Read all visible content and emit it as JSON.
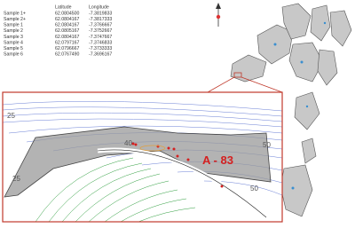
{
  "table": {
    "header": [
      "Latitude",
      "Longitude"
    ],
    "rows": [
      [
        "Sample 1+",
        "62.0804500",
        "-7.3819833"
      ],
      [
        "Sample 2+",
        "62.0804167",
        "-7.3817333"
      ],
      [
        "Sample 1",
        "62.0804167",
        "-7.3766667"
      ],
      [
        "Sample 2",
        "62.0805167",
        "-7.3752667"
      ],
      [
        "Sample 3",
        "62.0804167",
        "-7.3747667"
      ],
      [
        "Sample 4",
        "62.0797167",
        "-7.3746833"
      ],
      [
        "Sample 5",
        "62.0796667",
        "-7.3733333"
      ],
      [
        "Sample 6",
        "62.0767490",
        "-7.3696167"
      ]
    ]
  },
  "inset": {
    "label": "A - 83",
    "contour_labels": [
      "25",
      "25",
      "40",
      "50",
      "50"
    ]
  }
}
